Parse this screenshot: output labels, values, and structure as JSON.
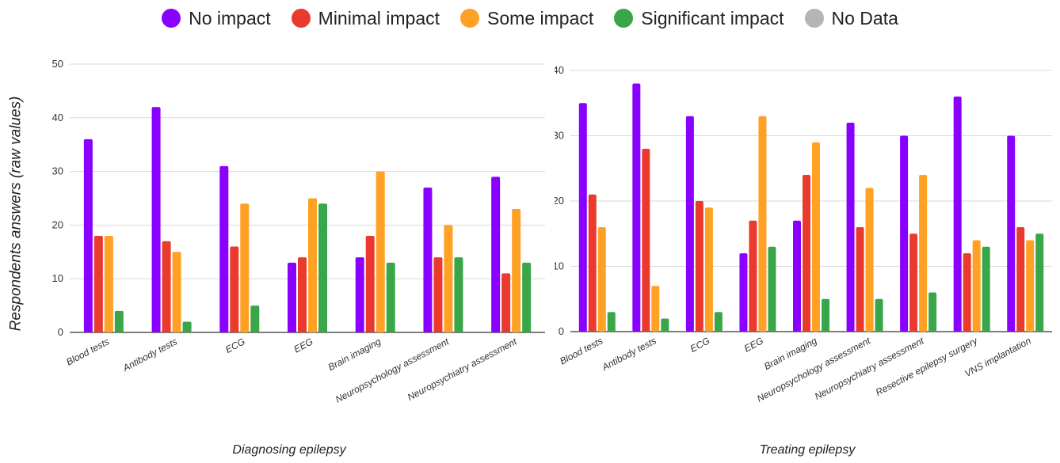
{
  "legend": {
    "items": [
      {
        "label": "No impact",
        "color": "#8a00ff"
      },
      {
        "label": "Minimal impact",
        "color": "#ea3a2e"
      },
      {
        "label": "Some impact",
        "color": "#ffa125"
      },
      {
        "label": "Significant impact",
        "color": "#39a649"
      },
      {
        "label": "No Data",
        "color": "#b5b5b5"
      }
    ]
  },
  "ylabel": "Respondents answers (raw values)",
  "chart_data": [
    {
      "type": "bar",
      "xlabel": "Diagnosing epilepsy",
      "ylabel": "Respondents answers (raw values)",
      "ylim": [
        0,
        50
      ],
      "yticks": [
        0,
        10,
        20,
        30,
        40,
        50
      ],
      "grid": true,
      "legend_position": "top",
      "categories": [
        "Blood tests",
        "Antibody tests",
        "ECG",
        "EEG",
        "Brain imaging",
        "Neuropsychology assessment",
        "Neuropsychiatry assessment"
      ],
      "series": [
        {
          "name": "No impact",
          "color": "#8a00ff",
          "values": [
            36,
            42,
            31,
            13,
            14,
            27,
            29
          ]
        },
        {
          "name": "Minimal impact",
          "color": "#ea3a2e",
          "values": [
            18,
            17,
            16,
            14,
            18,
            14,
            11
          ]
        },
        {
          "name": "Some impact",
          "color": "#ffa125",
          "values": [
            18,
            15,
            24,
            25,
            30,
            20,
            23
          ]
        },
        {
          "name": "Significant impact",
          "color": "#39a649",
          "values": [
            4,
            2,
            5,
            24,
            13,
            14,
            13
          ]
        }
      ]
    },
    {
      "type": "bar",
      "xlabel": "Treating epilepsy",
      "ylim": [
        0,
        40
      ],
      "yticks": [
        0,
        10,
        20,
        30,
        40
      ],
      "grid": true,
      "legend_position": "top",
      "categories": [
        "Blood tests",
        "Antibody tests",
        "ECG",
        "EEG",
        "Brain imaging",
        "Neuropsychology assessment",
        "Neuropsychiatry assessment",
        "Resective epilepsy surgery",
        "VNS implantation"
      ],
      "series": [
        {
          "name": "No impact",
          "color": "#8a00ff",
          "values": [
            35,
            38,
            33,
            12,
            17,
            32,
            30,
            36,
            30
          ]
        },
        {
          "name": "Minimal impact",
          "color": "#ea3a2e",
          "values": [
            21,
            28,
            20,
            17,
            24,
            16,
            15,
            12,
            16
          ]
        },
        {
          "name": "Some impact",
          "color": "#ffa125",
          "values": [
            16,
            7,
            19,
            33,
            29,
            22,
            24,
            14,
            14
          ]
        },
        {
          "name": "Significant impact",
          "color": "#39a649",
          "values": [
            3,
            2,
            3,
            13,
            5,
            5,
            6,
            13,
            15
          ]
        }
      ]
    }
  ]
}
